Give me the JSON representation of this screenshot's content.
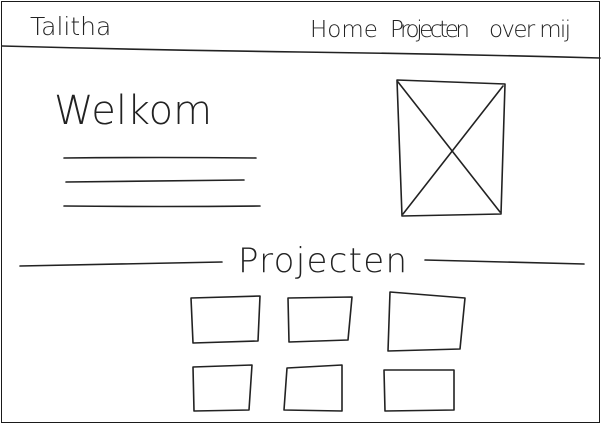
{
  "header": {
    "brand": "Talitha",
    "nav": [
      {
        "label": "Home"
      },
      {
        "label": "Projecten"
      },
      {
        "label": "over mij"
      }
    ]
  },
  "hero": {
    "title": "Welkom"
  },
  "projects": {
    "heading": "Projecten"
  }
}
